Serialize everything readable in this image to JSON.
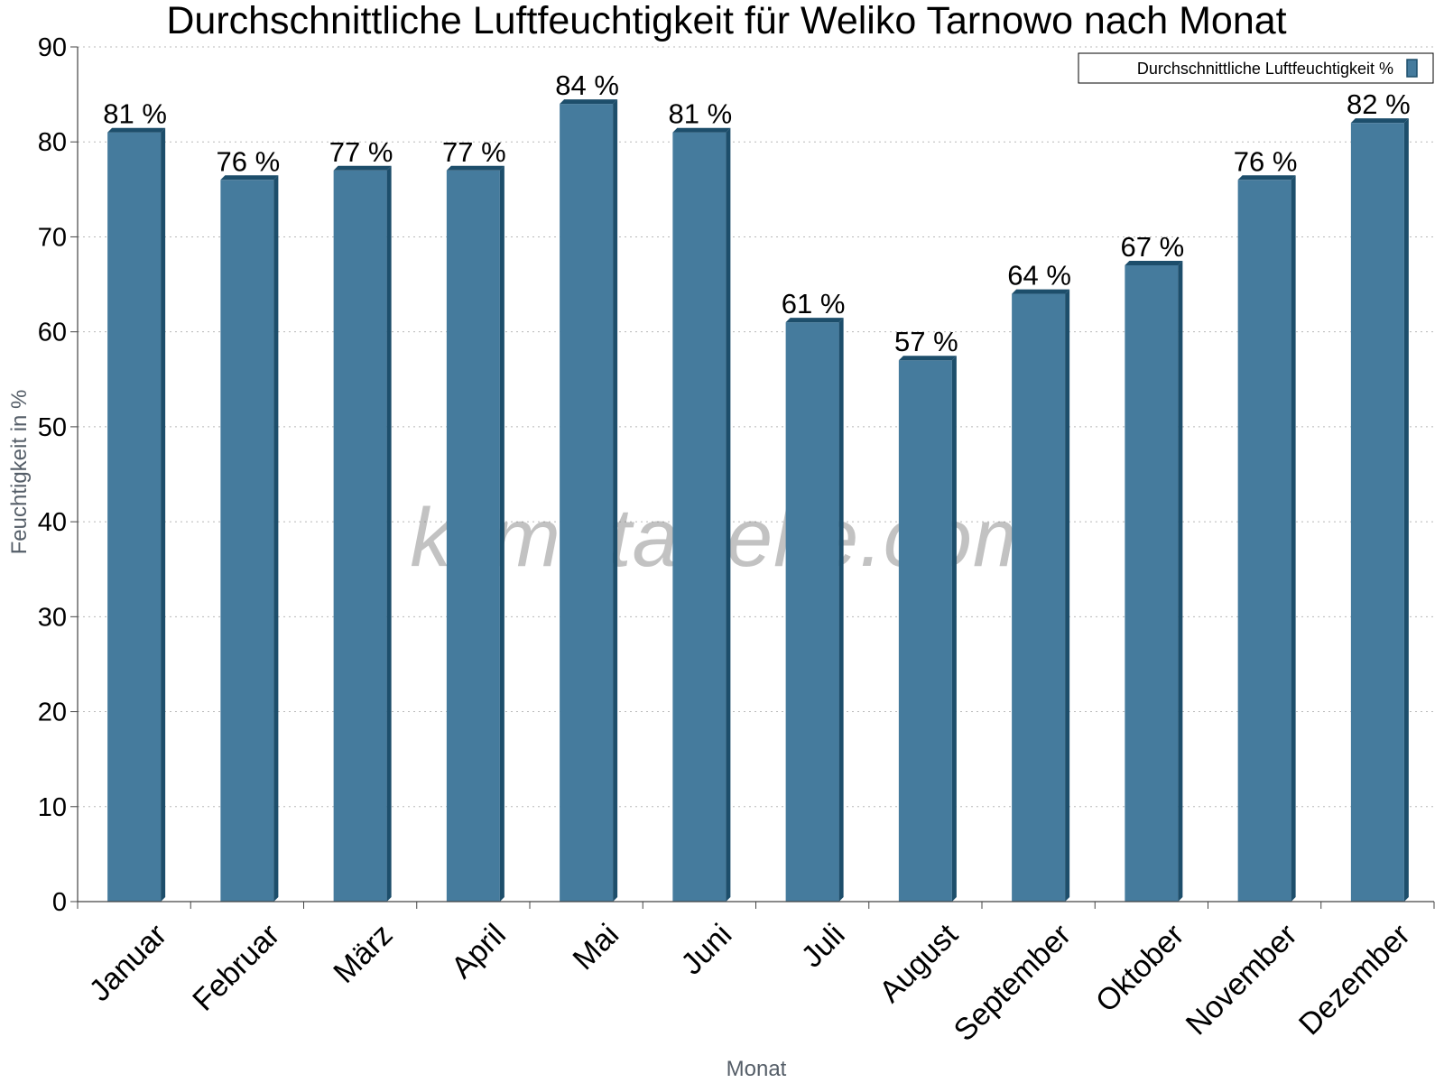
{
  "chart_data": {
    "type": "bar",
    "title": "Durchschnittliche Luftfeuchtigkeit für Weliko Tarnowo nach Monat",
    "xlabel": "Monat",
    "ylabel": "Feuchtigkeit in %",
    "ylim": [
      0,
      90
    ],
    "yticks": [
      "0",
      "10",
      "20",
      "30",
      "40",
      "50",
      "60",
      "70",
      "80",
      "90"
    ],
    "categories": [
      "Januar",
      "Februar",
      "März",
      "April",
      "Mai",
      "Juni",
      "Juli",
      "August",
      "September",
      "Oktober",
      "November",
      "Dezember"
    ],
    "series": [
      {
        "name": "Durchschnittliche Luftfeuchtigkeit %",
        "values": [
          81,
          76,
          77,
          77,
          84,
          81,
          61,
          57,
          64,
          67,
          76,
          82
        ],
        "data_labels": [
          "81 %",
          "76 %",
          "77 %",
          "77 %",
          "84 %",
          "81 %",
          "61 %",
          "57 %",
          "64 %",
          "67 %",
          "76 %",
          "82 %"
        ],
        "color": "#457b9d",
        "edge_color": "#1d4e6b"
      }
    ],
    "grid": true,
    "legend": "top-right",
    "watermark": "klimatabelle.com"
  }
}
